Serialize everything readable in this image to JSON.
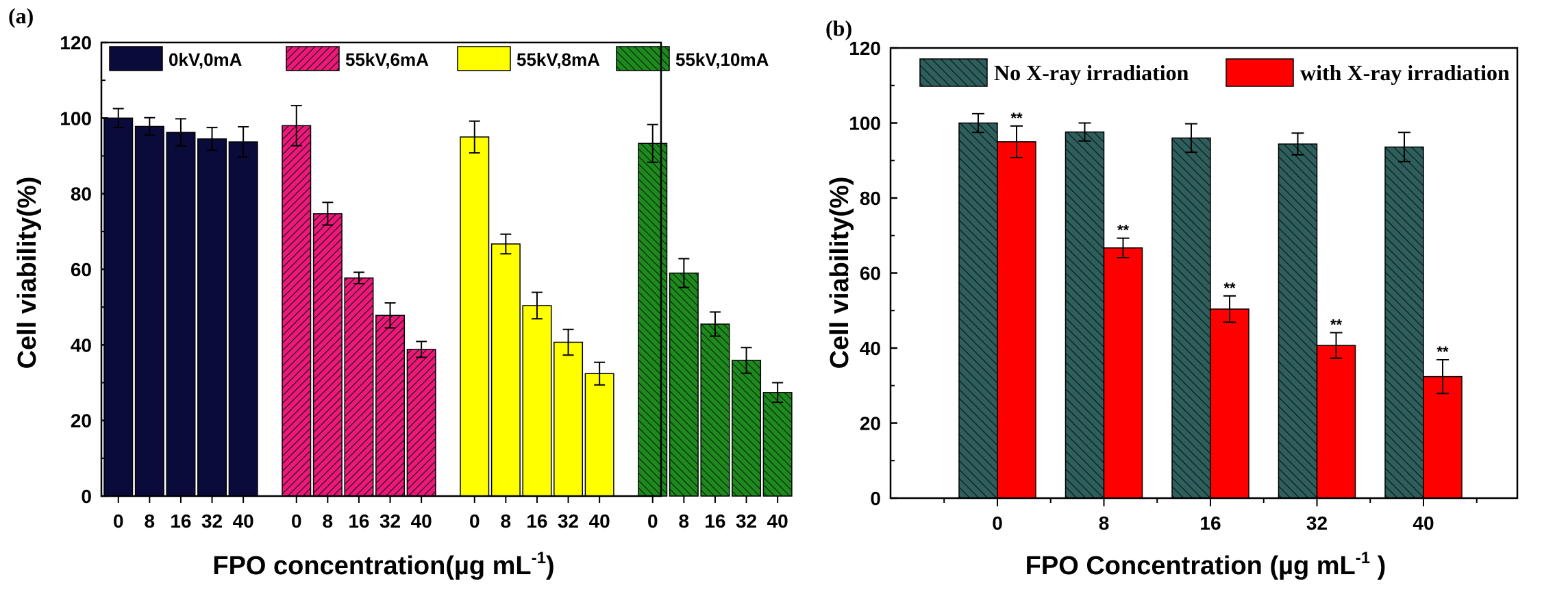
{
  "chart_data": [
    {
      "panel_label": "(a)",
      "type": "bar",
      "xlabel": "FPO concentration(µg mL",
      "xlabel_superscript": "-1",
      "xlabel_suffix": ")",
      "ylabel": "Cell viability(%)",
      "ylim": [
        0,
        120
      ],
      "yticks": [
        "0",
        "20",
        "40",
        "60",
        "80",
        "100",
        "120"
      ],
      "groups": [
        {
          "name": "0kV,0mA",
          "color": "#0b0b3b",
          "pattern": "solid",
          "categories": [
            "0",
            "8",
            "16",
            "32",
            "40"
          ],
          "values": [
            100,
            97.8,
            96.2,
            94.5,
            93.7
          ],
          "errors": [
            2.5,
            2.3,
            3.6,
            3.0,
            4.0
          ]
        },
        {
          "name": "55kV,6mA",
          "color": "#f0177a",
          "pattern": "diag-right",
          "categories": [
            "0",
            "8",
            "16",
            "32",
            "40"
          ],
          "values": [
            98,
            74.7,
            57.7,
            47.8,
            38.8
          ],
          "errors": [
            5.3,
            3.0,
            1.5,
            3.3,
            2.1
          ]
        },
        {
          "name": "55kV,8mA",
          "color": "#ffff00",
          "pattern": "solid",
          "categories": [
            "0",
            "8",
            "16",
            "32",
            "40"
          ],
          "values": [
            95,
            66.7,
            50.4,
            40.7,
            32.4
          ],
          "errors": [
            4.2,
            2.6,
            3.5,
            3.4,
            3.0
          ]
        },
        {
          "name": "55kV,10mA",
          "color": "#1e8a1e",
          "pattern": "diag-left",
          "categories": [
            "0",
            "8",
            "16",
            "32",
            "40"
          ],
          "values": [
            93.3,
            59,
            45.5,
            35.9,
            27.4
          ],
          "errors": [
            5.0,
            3.8,
            3.2,
            3.4,
            2.6
          ]
        }
      ]
    },
    {
      "panel_label": "(b)",
      "type": "bar",
      "xlabel": "FPO Concentration (µg mL",
      "xlabel_superscript": "-1",
      "xlabel_suffix": " )",
      "ylabel": "Cell viability(%)",
      "ylim": [
        0,
        120
      ],
      "yticks": [
        "0",
        "20",
        "40",
        "60",
        "80",
        "100",
        "120"
      ],
      "categories": [
        "0",
        "8",
        "16",
        "32",
        "40"
      ],
      "series": [
        {
          "name": "No X-ray irradiation",
          "color": "#2f5f5c",
          "pattern": "diag-left",
          "values": [
            100,
            97.6,
            96,
            94.4,
            93.6
          ],
          "errors": [
            2.5,
            2.4,
            3.8,
            2.9,
            3.9
          ]
        },
        {
          "name": "with X-ray irradiation",
          "color": "#ff0000",
          "pattern": "solid",
          "values": [
            95,
            66.7,
            50.4,
            40.7,
            32.4
          ],
          "errors": [
            4.2,
            2.6,
            3.5,
            3.4,
            4.5
          ]
        }
      ],
      "annotations": [
        "**",
        "**",
        "**",
        "**",
        "**"
      ]
    }
  ]
}
